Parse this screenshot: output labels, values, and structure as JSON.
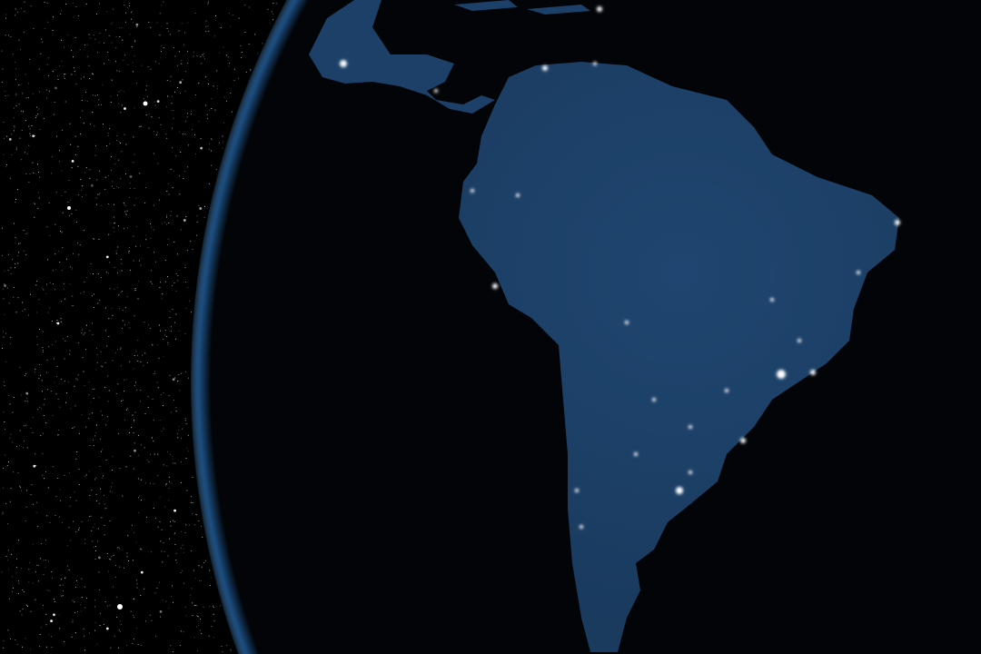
{
  "scene": {
    "subject": "earth-at-night-south-america",
    "colors": {
      "space": "#000000",
      "atmosphere": "#3a7fc4",
      "ocean": "#020408",
      "land": "#1d3f66",
      "city_lights": "#ffffff"
    }
  }
}
